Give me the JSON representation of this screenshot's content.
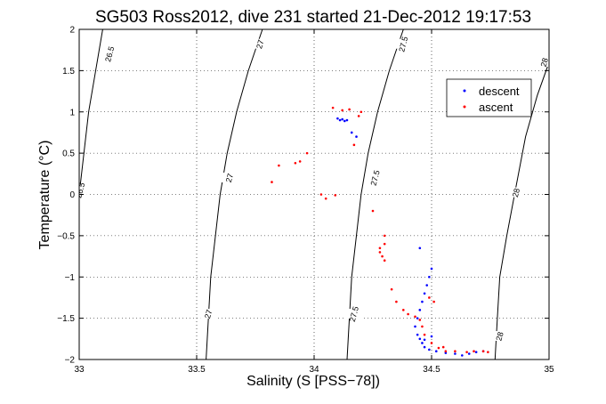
{
  "chart_data": {
    "type": "scatter",
    "title": "SG503 Ross2012, dive 231 started 21-Dec-2012 19:17:53",
    "xlabel": "Salinity (S [PSS−78])",
    "ylabel": "Temperature (°C)",
    "xlim": [
      33,
      35
    ],
    "ylim": [
      -2,
      2
    ],
    "x_ticks": [
      33,
      33.5,
      34,
      34.5,
      35
    ],
    "x_tick_labels": [
      "33",
      "33.5",
      "34",
      "34.5",
      "35"
    ],
    "y_ticks": [
      -2,
      -1.5,
      -1,
      -0.5,
      0,
      0.5,
      1,
      1.5,
      2
    ],
    "y_tick_labels": [
      "−2",
      "−1.5",
      "−1",
      "−0.5",
      "0",
      "0.5",
      "1",
      "1.5",
      "2"
    ],
    "grid": true,
    "legend_position": "top-right",
    "density_contours": [
      {
        "label": "26.5",
        "points": [
          [
            33.1,
            2.0
          ],
          [
            33.07,
            1.5
          ],
          [
            33.04,
            1.0
          ],
          [
            33.02,
            0.5
          ],
          [
            33.0,
            0.0
          ],
          [
            32.99,
            -0.1
          ]
        ],
        "label_at": [
          [
            33.13,
            1.7
          ],
          [
            33.005,
            0.05
          ]
        ]
      },
      {
        "label": "27",
        "points": [
          [
            33.78,
            2.0
          ],
          [
            33.72,
            1.5
          ],
          [
            33.67,
            1.0
          ],
          [
            33.63,
            0.5
          ],
          [
            33.6,
            0.0
          ],
          [
            33.58,
            -0.5
          ],
          [
            33.56,
            -1.0
          ],
          [
            33.55,
            -1.5
          ],
          [
            33.54,
            -2.0
          ]
        ],
        "label_at": [
          [
            33.77,
            1.82
          ],
          [
            33.64,
            0.2
          ],
          [
            33.55,
            -1.45
          ]
        ]
      },
      {
        "label": "27.5",
        "points": [
          [
            34.38,
            2.0
          ],
          [
            34.32,
            1.5
          ],
          [
            34.27,
            1.0
          ],
          [
            34.23,
            0.5
          ],
          [
            34.2,
            0.0
          ],
          [
            34.18,
            -0.5
          ],
          [
            34.16,
            -1.0
          ],
          [
            34.15,
            -1.5
          ],
          [
            34.14,
            -2.0
          ]
        ],
        "label_at": [
          [
            34.38,
            1.82
          ],
          [
            34.26,
            0.2
          ],
          [
            34.17,
            -1.45
          ]
        ]
      },
      {
        "label": "28",
        "points": [
          [
            35.0,
            1.6
          ],
          [
            34.95,
            1.2
          ],
          [
            34.9,
            0.7
          ],
          [
            34.86,
            0.1
          ],
          [
            34.82,
            -0.5
          ],
          [
            34.79,
            -1.0
          ],
          [
            34.78,
            -1.5
          ],
          [
            34.77,
            -2.0
          ]
        ],
        "label_at": [
          [
            34.98,
            1.6
          ],
          [
            34.86,
            0.02
          ],
          [
            34.79,
            -1.72
          ]
        ]
      }
    ],
    "series": [
      {
        "name": "descent",
        "color": "#0000ff",
        "points": [
          [
            34.1,
            0.92
          ],
          [
            34.11,
            0.9
          ],
          [
            34.12,
            0.91
          ],
          [
            34.13,
            0.89
          ],
          [
            34.14,
            0.9
          ],
          [
            34.16,
            0.75
          ],
          [
            34.18,
            0.7
          ],
          [
            34.45,
            -0.65
          ],
          [
            34.5,
            -0.9
          ],
          [
            34.49,
            -1.0
          ],
          [
            34.48,
            -1.1
          ],
          [
            34.47,
            -1.2
          ],
          [
            34.46,
            -1.3
          ],
          [
            34.45,
            -1.4
          ],
          [
            34.44,
            -1.5
          ],
          [
            34.43,
            -1.6
          ],
          [
            34.44,
            -1.7
          ],
          [
            34.45,
            -1.75
          ],
          [
            34.46,
            -1.8
          ],
          [
            34.47,
            -1.85
          ],
          [
            34.49,
            -1.88
          ],
          [
            34.52,
            -1.9
          ],
          [
            34.56,
            -1.92
          ],
          [
            34.6,
            -1.93
          ],
          [
            34.63,
            -1.95
          ],
          [
            34.66,
            -1.93
          ],
          [
            34.69,
            -1.91
          ],
          [
            34.72,
            -1.9
          ],
          [
            34.5,
            -1.72
          ],
          [
            34.47,
            -1.76
          ]
        ]
      },
      {
        "name": "ascent",
        "color": "#ff0000",
        "points": [
          [
            34.08,
            1.05
          ],
          [
            34.12,
            1.02
          ],
          [
            34.15,
            1.03
          ],
          [
            34.2,
            1.0
          ],
          [
            34.19,
            0.95
          ],
          [
            34.17,
            0.6
          ],
          [
            33.97,
            0.5
          ],
          [
            33.94,
            0.4
          ],
          [
            33.92,
            0.38
          ],
          [
            33.85,
            0.35
          ],
          [
            33.82,
            0.15
          ],
          [
            34.03,
            0.0
          ],
          [
            34.05,
            -0.05
          ],
          [
            34.09,
            -0.01
          ],
          [
            34.25,
            -0.2
          ],
          [
            34.3,
            -0.5
          ],
          [
            34.3,
            -0.6
          ],
          [
            34.28,
            -0.65
          ],
          [
            34.28,
            -0.7
          ],
          [
            34.29,
            -0.75
          ],
          [
            34.3,
            -0.8
          ],
          [
            34.33,
            -1.15
          ],
          [
            34.35,
            -1.3
          ],
          [
            34.38,
            -1.4
          ],
          [
            34.4,
            -1.45
          ],
          [
            34.43,
            -1.48
          ],
          [
            34.45,
            -1.52
          ],
          [
            34.46,
            -1.6
          ],
          [
            34.47,
            -1.7
          ],
          [
            34.5,
            -1.8
          ],
          [
            34.53,
            -1.86
          ],
          [
            34.56,
            -1.9
          ],
          [
            34.6,
            -1.9
          ],
          [
            34.65,
            -1.91
          ],
          [
            34.68,
            -1.9
          ],
          [
            34.72,
            -1.9
          ],
          [
            34.74,
            -1.91
          ],
          [
            34.49,
            -1.25
          ],
          [
            34.51,
            -1.3
          ],
          [
            34.55,
            -1.85
          ]
        ]
      }
    ]
  }
}
